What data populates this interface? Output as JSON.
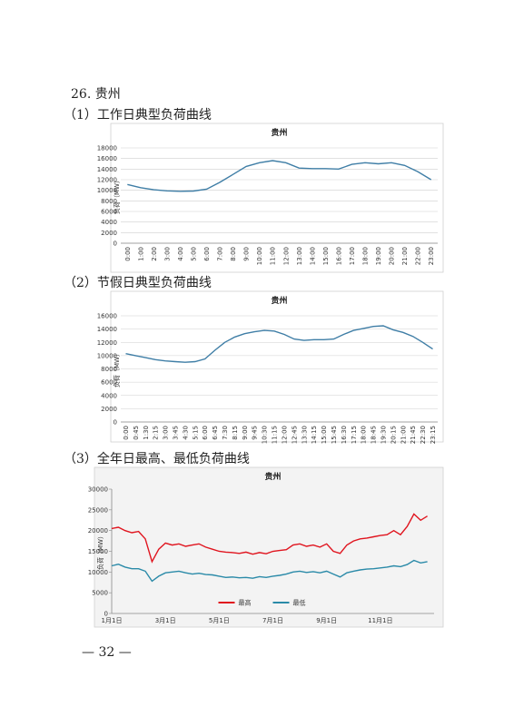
{
  "heading": "26. 贵州",
  "sections": [
    "（1）工作日典型负荷曲线",
    "（2）节假日典型负荷曲线",
    "（3）全年日最高、最低负荷曲线"
  ],
  "page_number": "— 32 —",
  "chart_data": [
    {
      "type": "line",
      "title": "贵州",
      "y_label": "负荷（MW）",
      "categories": [
        "0:00",
        "1:00",
        "2:00",
        "3:00",
        "4:00",
        "5:00",
        "6:00",
        "7:00",
        "8:00",
        "9:00",
        "10:00",
        "11:00",
        "12:00",
        "13:00",
        "14:00",
        "15:00",
        "16:00",
        "17:00",
        "18:00",
        "19:00",
        "20:00",
        "21:00",
        "22:00",
        "23:00"
      ],
      "values": [
        11100,
        10500,
        10100,
        9900,
        9800,
        9850,
        10200,
        11500,
        13000,
        14500,
        15200,
        15600,
        15200,
        14200,
        14100,
        14100,
        14000,
        14900,
        15200,
        15000,
        15200,
        14700,
        13500,
        12000
      ],
      "color": "#3f7ea6",
      "ylim": [
        0,
        18000
      ],
      "yticks": [
        0,
        2000,
        4000,
        6000,
        8000,
        10000,
        12000,
        14000,
        16000,
        18000
      ],
      "grid": true
    },
    {
      "type": "line",
      "title": "贵州",
      "y_label": "负荷（MW）",
      "categories": [
        "0:00",
        "0:45",
        "1:30",
        "2:15",
        "3:00",
        "3:45",
        "4:30",
        "5:15",
        "6:00",
        "6:45",
        "7:30",
        "8:15",
        "9:00",
        "9:45",
        "10:30",
        "11:15",
        "12:00",
        "12:45",
        "13:30",
        "14:15",
        "15:00",
        "15:45",
        "16:30",
        "17:15",
        "18:00",
        "18:45",
        "19:30",
        "20:15",
        "21:00",
        "21:45",
        "22:30",
        "23:15"
      ],
      "values": [
        10300,
        10000,
        9700,
        9400,
        9200,
        9100,
        9000,
        9100,
        9500,
        10800,
        12000,
        12800,
        13300,
        13600,
        13800,
        13700,
        13200,
        12500,
        12300,
        12400,
        12400,
        12500,
        13200,
        13800,
        14100,
        14400,
        14500,
        13900,
        13500,
        12900,
        12000,
        11000
      ],
      "color": "#3f7ea6",
      "ylim": [
        0,
        16000
      ],
      "yticks": [
        0,
        2000,
        4000,
        6000,
        8000,
        10000,
        12000,
        14000,
        16000
      ],
      "grid": true
    },
    {
      "type": "line",
      "title": "贵州",
      "y_label": "负荷（MW）",
      "categories": [
        "1月1日",
        null,
        null,
        null,
        null,
        null,
        null,
        null,
        "3月1日",
        null,
        null,
        null,
        null,
        null,
        null,
        null,
        "5月1日",
        null,
        null,
        null,
        null,
        null,
        null,
        null,
        "7月1日",
        null,
        null,
        null,
        null,
        null,
        null,
        null,
        "9月1日",
        null,
        null,
        null,
        null,
        null,
        null,
        null,
        "11月1日",
        null,
        null,
        null,
        null,
        null,
        null,
        null
      ],
      "series": [
        {
          "name": "最高",
          "color": "#e0141e",
          "values": [
            20500,
            20800,
            20000,
            19500,
            19800,
            18000,
            12500,
            15500,
            17000,
            16500,
            16800,
            16200,
            16500,
            16800,
            16000,
            15500,
            15000,
            14800,
            14700,
            14500,
            14800,
            14300,
            14700,
            14400,
            15000,
            15200,
            15400,
            16500,
            16800,
            16200,
            16500,
            16000,
            16800,
            15000,
            14500,
            16500,
            17500,
            18000,
            18200,
            18500,
            18800,
            19000,
            20000,
            19000,
            21000,
            24000,
            22500,
            23500
          ]
        },
        {
          "name": "最低",
          "color": "#2a8aa8",
          "values": [
            11500,
            11900,
            11200,
            10800,
            10800,
            10200,
            7800,
            9000,
            9800,
            10000,
            10200,
            9800,
            9500,
            9700,
            9400,
            9300,
            9000,
            8700,
            8800,
            8600,
            8700,
            8500,
            8900,
            8700,
            9000,
            9200,
            9500,
            10000,
            10200,
            9900,
            10100,
            9800,
            10200,
            9500,
            8800,
            9800,
            10200,
            10500,
            10700,
            10800,
            11000,
            11200,
            11500,
            11300,
            11800,
            12800,
            12200,
            12500
          ]
        }
      ],
      "ylim": [
        0,
        30000
      ],
      "yticks": [
        0,
        5000,
        10000,
        15000,
        20000,
        25000,
        30000
      ],
      "grid": false,
      "legend": "bottom"
    }
  ]
}
